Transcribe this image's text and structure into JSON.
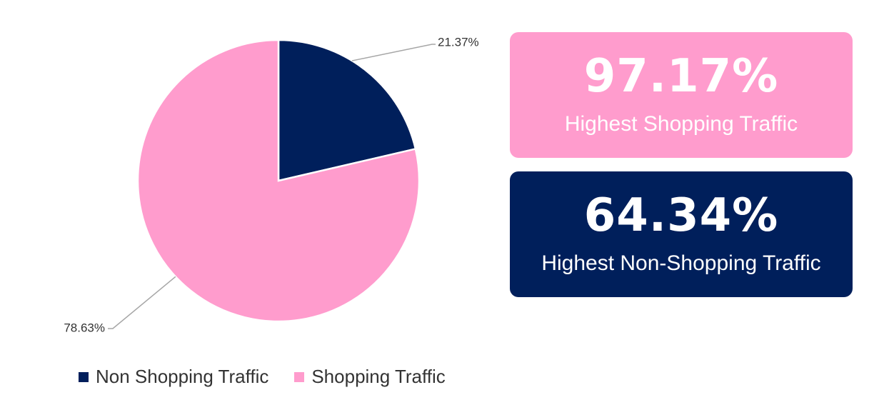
{
  "chart_data": {
    "type": "pie",
    "categories": [
      "Non Shopping Traffic",
      "Shopping Traffic"
    ],
    "values": [
      21.37,
      78.63
    ],
    "data_labels": [
      "21.37%",
      "78.63%"
    ],
    "colors": [
      "#001f5b",
      "#ff9ccd"
    ],
    "legend_placement": "bottom",
    "title": ""
  },
  "legend": {
    "items": [
      {
        "label": "Non Shopping Traffic",
        "color": "#001f5b"
      },
      {
        "label": "Shopping Traffic",
        "color": "#ff9ccd"
      }
    ]
  },
  "cards": {
    "shopping": {
      "value": "97.17%",
      "label": "Highest Shopping Traffic",
      "color": "#ff9ccd"
    },
    "non_shopping": {
      "value": "64.34%",
      "label": "Highest Non-Shopping Traffic",
      "color": "#001f5b"
    }
  }
}
